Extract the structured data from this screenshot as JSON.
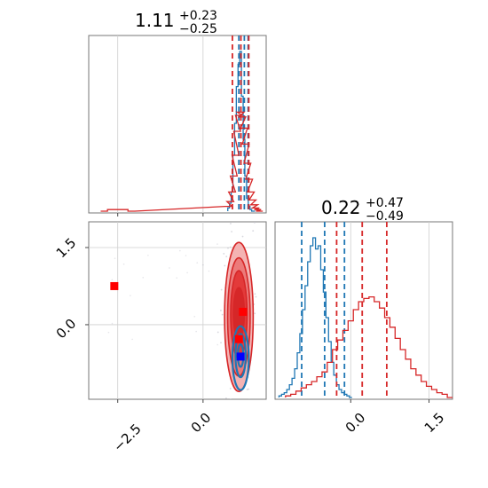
{
  "chart_data": [
    {
      "type": "histogram",
      "panel": "marginal-x",
      "title": {
        "main": "1.11",
        "plus": "+0.23",
        "minus": "−0.25"
      },
      "xlim": [
        -3.35,
        1.85
      ],
      "grid": true,
      "series": [
        {
          "name": "blue",
          "color": "#1f77b4",
          "bins_x": [
            0.75,
            0.8,
            0.85,
            0.9,
            0.95,
            1.0,
            1.05,
            1.1,
            1.15,
            1.2,
            1.25,
            1.3,
            1.35,
            1.4,
            1.45,
            1.5
          ],
          "counts": [
            0.02,
            0.05,
            0.12,
            0.35,
            0.55,
            0.78,
            0.92,
            1.0,
            0.72,
            0.45,
            0.22,
            0.08,
            0.03,
            0.01,
            0.0,
            0.0
          ],
          "quantile_lines": [
            1.05,
            1.21,
            1.32
          ]
        },
        {
          "name": "red",
          "color": "#d62728",
          "bins_x": [
            -2.9,
            -2.7,
            -2.5,
            -2.3,
            -2.1,
            0.75,
            0.8,
            0.85,
            0.9,
            0.95,
            1.0,
            1.05,
            1.1,
            1.15,
            1.2,
            1.25,
            1.3,
            1.35,
            1.4,
            1.45,
            1.5,
            1.55,
            1.6,
            1.65
          ],
          "counts": [
            0.0,
            0.01,
            0.01,
            0.01,
            0.0,
            0.03,
            0.06,
            0.12,
            0.22,
            0.35,
            0.5,
            0.6,
            0.62,
            0.59,
            0.52,
            0.42,
            0.3,
            0.2,
            0.12,
            0.07,
            0.04,
            0.02,
            0.01,
            0.0
          ],
          "quantile_lines": [
            0.86,
            1.11,
            1.34
          ]
        }
      ]
    },
    {
      "type": "contour",
      "panel": "joint",
      "xlim": [
        -3.35,
        1.85
      ],
      "ylim": [
        -1.45,
        2.0
      ],
      "xticks": [
        -2.5,
        0.0
      ],
      "xtick_labels": [
        "−2.5",
        "0.0"
      ],
      "yticks": [
        0.0,
        1.5
      ],
      "ytick_labels": [
        "0.0",
        "1.5"
      ],
      "grid": true,
      "series": [
        {
          "name": "red",
          "color": "#d62728",
          "contours": [
            {
              "cx": 1.05,
              "cy": 0.15,
              "rx": 0.42,
              "ry": 1.45,
              "fill": "#f4b3b3"
            },
            {
              "cx": 1.05,
              "cy": 0.15,
              "rx": 0.33,
              "ry": 1.15,
              "fill": "#ec7a7a"
            },
            {
              "cx": 1.05,
              "cy": 0.2,
              "rx": 0.24,
              "ry": 0.85,
              "fill": "#e33a3a"
            },
            {
              "cx": 1.05,
              "cy": 0.22,
              "rx": 0.16,
              "ry": 0.5,
              "fill": "#d62728"
            }
          ],
          "markers": [
            {
              "x": -2.6,
              "y": 0.75
            },
            {
              "x": 1.17,
              "y": 0.25
            },
            {
              "x": 1.05,
              "y": -0.28
            }
          ]
        },
        {
          "name": "blue",
          "color": "#1f77b4",
          "contours": [
            {
              "cx": 1.1,
              "cy": -0.65,
              "rx": 0.24,
              "ry": 0.62
            },
            {
              "cx": 1.1,
              "cy": -0.6,
              "rx": 0.15,
              "ry": 0.42
            },
            {
              "cx": 1.1,
              "cy": -0.6,
              "rx": 0.08,
              "ry": 0.22
            }
          ],
          "markers": [
            {
              "x": 1.1,
              "y": -0.62,
              "color": "#0000ff"
            }
          ]
        }
      ]
    },
    {
      "type": "histogram",
      "panel": "marginal-y",
      "title": {
        "main": "0.22",
        "plus": "+0.47",
        "minus": "−0.49"
      },
      "xlim": [
        -1.45,
        1.95
      ],
      "xticks": [
        0.0,
        1.5
      ],
      "xtick_labels": [
        "0.0",
        "1.5"
      ],
      "grid": true,
      "series": [
        {
          "name": "blue",
          "color": "#1f77b4",
          "bins_x": [
            -1.35,
            -1.3,
            -1.25,
            -1.2,
            -1.15,
            -1.1,
            -1.05,
            -1.0,
            -0.95,
            -0.9,
            -0.85,
            -0.8,
            -0.75,
            -0.7,
            -0.65,
            -0.6,
            -0.55,
            -0.5,
            -0.45,
            -0.4,
            -0.35,
            -0.3,
            -0.25,
            -0.2,
            -0.15,
            -0.1,
            -0.05,
            0.0
          ],
          "counts": [
            0.01,
            0.02,
            0.03,
            0.05,
            0.08,
            0.12,
            0.18,
            0.28,
            0.4,
            0.55,
            0.7,
            0.85,
            0.95,
            1.0,
            0.93,
            0.95,
            0.8,
            0.66,
            0.5,
            0.35,
            0.22,
            0.14,
            0.08,
            0.05,
            0.03,
            0.02,
            0.01,
            0.0
          ],
          "quantile_lines": [
            -0.94,
            -0.5,
            -0.12
          ]
        },
        {
          "name": "red",
          "color": "#d62728",
          "bins_x": [
            -1.2,
            -1.1,
            -1.0,
            -0.9,
            -0.8,
            -0.7,
            -0.6,
            -0.5,
            -0.4,
            -0.3,
            -0.2,
            -0.1,
            0.0,
            0.1,
            0.2,
            0.3,
            0.4,
            0.5,
            0.6,
            0.7,
            0.8,
            0.9,
            1.0,
            1.1,
            1.2,
            1.3,
            1.4,
            1.5,
            1.6,
            1.7,
            1.8,
            1.9
          ],
          "counts": [
            0.01,
            0.02,
            0.04,
            0.06,
            0.08,
            0.1,
            0.13,
            0.16,
            0.22,
            0.3,
            0.36,
            0.42,
            0.48,
            0.55,
            0.6,
            0.62,
            0.63,
            0.6,
            0.56,
            0.5,
            0.44,
            0.37,
            0.3,
            0.24,
            0.18,
            0.14,
            0.1,
            0.07,
            0.05,
            0.03,
            0.02,
            0.0
          ],
          "quantile_lines": [
            -0.27,
            0.22,
            0.69
          ]
        }
      ]
    }
  ]
}
